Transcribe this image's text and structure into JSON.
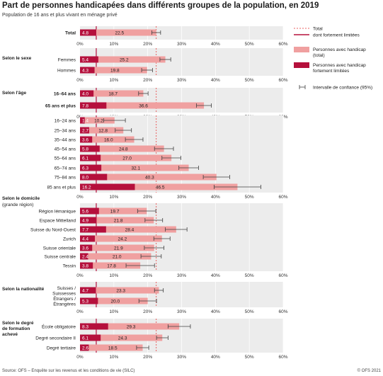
{
  "title": "Part de personnes handicapées dans différents groupes de la population, en 2019",
  "subtitle": "Population de 16 ans et plus vivant en ménage privé",
  "source": "Source: OFS – Enquête sur les revenus et les conditions de vie (SILC)",
  "copyright": "© OFS 2021",
  "colors": {
    "total": "#f0a0a0",
    "strong": "#b5103c",
    "panel": "#ececec",
    "grid": "#ffffff",
    "reference": "#e86060",
    "ci": "#404040"
  },
  "legend": {
    "total_line": "Total",
    "strong_line": "dont fortement limitées",
    "total_bar": "Personnes avec handicap (total)",
    "strong_bar": "Personnes avec handicap fortement limitées",
    "ci": "Intervalle de confiance (95%)"
  },
  "chart_data": {
    "type": "bar",
    "orientation": "horizontal",
    "xlim": [
      0,
      60
    ],
    "xticks": [
      "0%",
      "10%",
      "20%",
      "30%",
      "40%",
      "50%",
      "60%"
    ],
    "reference_total": 22.5,
    "reference_strong": 4.8,
    "series_names": [
      "Personnes avec handicap (total)",
      "Personnes avec handicap fortement limitées"
    ],
    "panels": [
      {
        "heading": "",
        "subheading": "",
        "rows": [
          {
            "label": "Total",
            "bold": true,
            "total": 22.5,
            "strong": 4.8,
            "ci": [
              21.2,
              23.8
            ]
          }
        ]
      },
      {
        "heading": "Selon le sexe",
        "subheading": "",
        "rows": [
          {
            "label": "Femmes",
            "total": 25.2,
            "strong": 5.4,
            "ci": [
              23.6,
              26.8
            ]
          },
          {
            "label": "Hommes",
            "total": 19.8,
            "strong": 4.3,
            "ci": [
              18.2,
              21.4
            ]
          }
        ]
      },
      {
        "heading": "Selon l'âge",
        "subheading": "",
        "rows": [
          {
            "label": "16–64 ans",
            "bold": true,
            "total": 18.7,
            "strong": 4.0,
            "ci": [
              17.3,
              20.1
            ]
          },
          {
            "label": "65 ans et plus",
            "bold": true,
            "total": 36.6,
            "strong": 7.8,
            "ci": [
              34.4,
              38.8
            ]
          }
        ]
      },
      {
        "heading": "",
        "subheading": "",
        "rows": [
          {
            "label": "16–24 ans",
            "total": 10.2,
            "strong": 1.4,
            "ci": [
              7.0,
              13.4
            ]
          },
          {
            "label": "25–34 ans",
            "total": 12.8,
            "strong": 2.7,
            "ci": [
              10.4,
              15.2
            ]
          },
          {
            "label": "35–44 ans",
            "total": 16.0,
            "strong": 3.6,
            "ci": [
              13.4,
              18.6
            ]
          },
          {
            "label": "45–54 ans",
            "total": 24.8,
            "strong": 5.8,
            "ci": [
              22.0,
              27.6
            ]
          },
          {
            "label": "55–64 ans",
            "total": 27.0,
            "strong": 6.1,
            "ci": [
              24.2,
              29.8
            ]
          },
          {
            "label": "65–74 ans",
            "total": 32.1,
            "strong": 6.3,
            "ci": [
              29.2,
              35.0
            ]
          },
          {
            "label": "75–84 ans",
            "total": 40.3,
            "strong": 8.0,
            "ci": [
              36.4,
              44.2
            ]
          },
          {
            "label": "85 ans et plus",
            "total": 46.5,
            "strong": 16.2,
            "ci": [
              39.6,
              53.4
            ]
          }
        ]
      },
      {
        "heading": "Selon le domicile",
        "subheading": "(grande région)",
        "rows": [
          {
            "label": "Région lémanique",
            "total": 19.7,
            "strong": 5.6,
            "ci": [
              17.0,
              22.4
            ]
          },
          {
            "label": "Espace Mittelland",
            "total": 21.8,
            "strong": 4.9,
            "ci": [
              19.2,
              24.4
            ]
          },
          {
            "label": "Suisse du Nord-Ouest",
            "total": 28.4,
            "strong": 7.7,
            "ci": [
              25.2,
              31.6
            ]
          },
          {
            "label": "Zurich",
            "total": 24.2,
            "strong": 4.4,
            "ci": [
              21.8,
              26.6
            ]
          },
          {
            "label": "Suisse orientale",
            "total": 21.9,
            "strong": 3.6,
            "ci": [
              19.0,
              24.8
            ]
          },
          {
            "label": "Suisse centrale",
            "total": 21.0,
            "strong": 2.4,
            "ci": [
              18.0,
              24.0
            ]
          },
          {
            "label": "Tessin",
            "total": 17.8,
            "strong": 3.8,
            "ci": [
              13.6,
              22.0
            ]
          }
        ]
      },
      {
        "heading": "Selon la nationalité",
        "subheading": "",
        "rows": [
          {
            "label": "Suisses / Suissesses",
            "total": 23.3,
            "strong": 4.7,
            "ci": [
              22.0,
              24.6
            ]
          },
          {
            "label": "Étrangers / Étrangères",
            "total": 20.0,
            "strong": 5.3,
            "ci": [
              17.4,
              22.6
            ]
          }
        ]
      },
      {
        "heading": "Selon le degré de formation achevé",
        "subheading": "",
        "rows": [
          {
            "label": "École obligatoire",
            "total": 29.3,
            "strong": 8.3,
            "ci": [
              26.0,
              32.6
            ]
          },
          {
            "label": "Degré secondaire II",
            "total": 24.3,
            "strong": 6.1,
            "ci": [
              22.6,
              26.0
            ]
          },
          {
            "label": "Degré tertiaire",
            "total": 18.5,
            "strong": 2.6,
            "ci": [
              16.7,
              20.3
            ]
          }
        ]
      }
    ]
  }
}
